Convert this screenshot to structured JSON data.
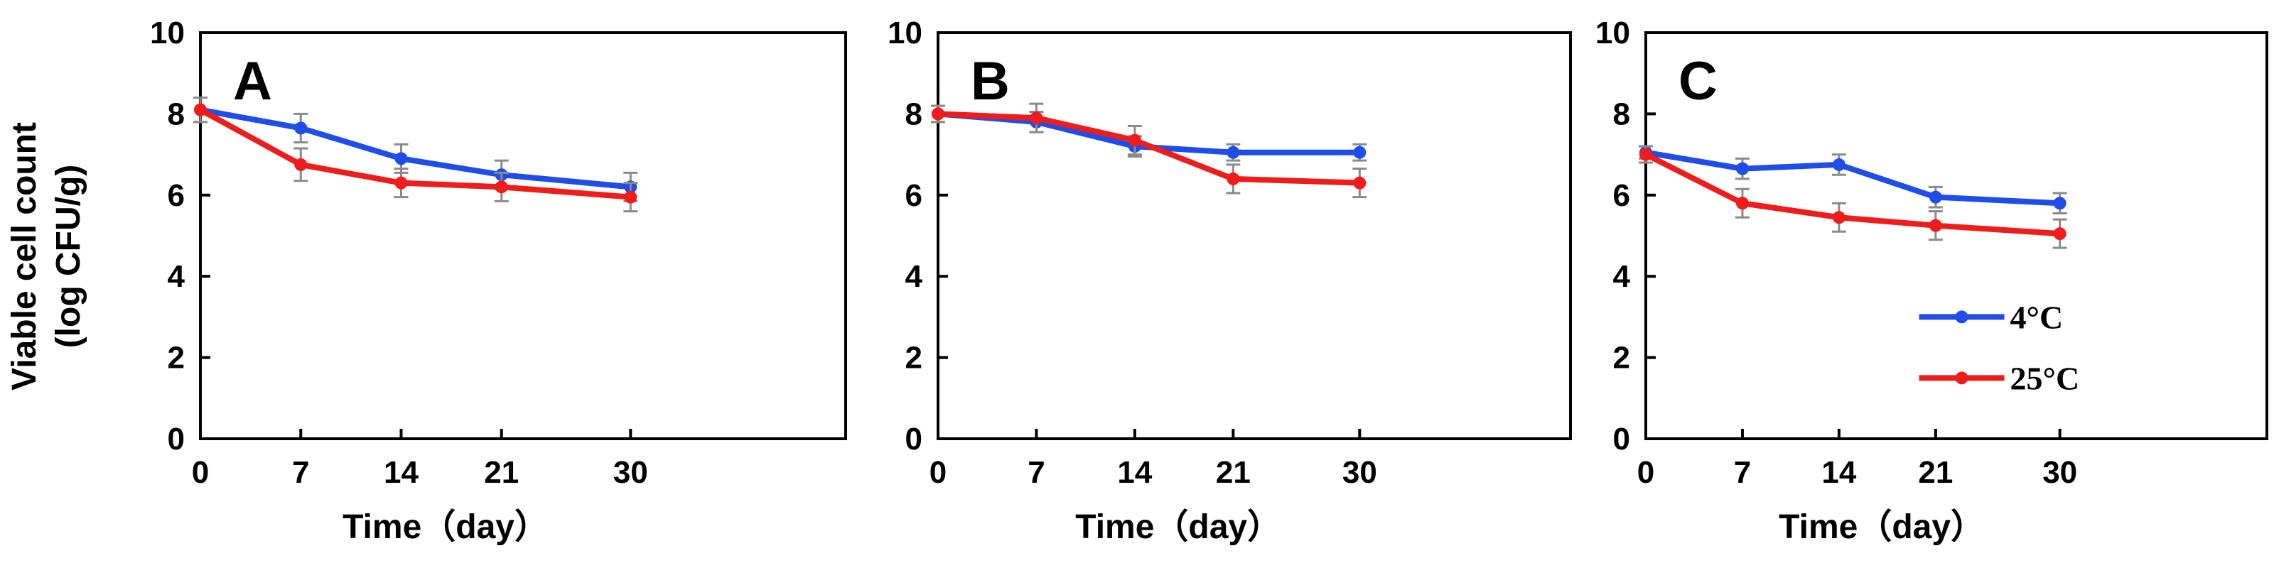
{
  "figure": {
    "y_axis_title_line1": "Viable cell count",
    "y_axis_title_line2": "(log CFU/g)",
    "x_axis_title": "Time（day）"
  },
  "legend": {
    "entries": [
      {
        "label": "4°C",
        "color": "#1f4de8"
      },
      {
        "label": "25°C",
        "color": "#ef1c1c"
      }
    ]
  },
  "chart_data": [
    {
      "type": "line",
      "panel": "A",
      "x": [
        0,
        7,
        14,
        21,
        30
      ],
      "x_tick_labels": [
        "0",
        "7",
        "14",
        "21",
        "30"
      ],
      "y_tick_labels": [
        "0",
        "2",
        "4",
        "6",
        "8",
        "10"
      ],
      "xlabel": "Time（day）",
      "ylabel": "Viable cell count (log CFU/g)",
      "ylim": [
        0,
        10
      ],
      "series": [
        {
          "name": "4°C",
          "color": "#1f4de8",
          "values": [
            8.1,
            7.65,
            6.9,
            6.5,
            6.2
          ],
          "errors": [
            0.3,
            0.35,
            0.35,
            0.35,
            0.35
          ]
        },
        {
          "name": "25°C",
          "color": "#ef1c1c",
          "values": [
            8.1,
            6.75,
            6.3,
            6.2,
            5.95
          ],
          "errors": [
            0.3,
            0.4,
            0.35,
            0.35,
            0.35
          ]
        }
      ]
    },
    {
      "type": "line",
      "panel": "B",
      "x": [
        0,
        7,
        14,
        21,
        30
      ],
      "x_tick_labels": [
        "0",
        "7",
        "14",
        "21",
        "30"
      ],
      "y_tick_labels": [
        "0",
        "2",
        "4",
        "6",
        "8",
        "10"
      ],
      "xlabel": "Time（day）",
      "ylabel": "",
      "ylim": [
        0,
        10
      ],
      "series": [
        {
          "name": "4°C",
          "color": "#1f4de8",
          "values": [
            8.0,
            7.8,
            7.2,
            7.05,
            7.05
          ],
          "errors": [
            0.2,
            0.25,
            0.25,
            0.2,
            0.2
          ]
        },
        {
          "name": "25°C",
          "color": "#ef1c1c",
          "values": [
            8.0,
            7.9,
            7.35,
            6.4,
            6.3
          ],
          "errors": [
            0.2,
            0.35,
            0.35,
            0.35,
            0.35
          ]
        }
      ]
    },
    {
      "type": "line",
      "panel": "C",
      "x": [
        0,
        7,
        14,
        21,
        30
      ],
      "x_tick_labels": [
        "0",
        "7",
        "14",
        "21",
        "30"
      ],
      "y_tick_labels": [
        "0",
        "2",
        "4",
        "6",
        "8",
        "10"
      ],
      "xlabel": "Time（day）",
      "ylabel": "",
      "ylim": [
        0,
        10
      ],
      "legend_position": "bottom-right",
      "series": [
        {
          "name": "4°C",
          "color": "#1f4de8",
          "values": [
            7.05,
            6.65,
            6.75,
            5.95,
            5.8
          ],
          "errors": [
            0.15,
            0.25,
            0.25,
            0.25,
            0.25
          ]
        },
        {
          "name": "25°C",
          "color": "#ef1c1c",
          "values": [
            7.0,
            5.8,
            5.45,
            5.25,
            5.05
          ],
          "errors": [
            0.2,
            0.35,
            0.35,
            0.35,
            0.35
          ]
        }
      ]
    }
  ]
}
